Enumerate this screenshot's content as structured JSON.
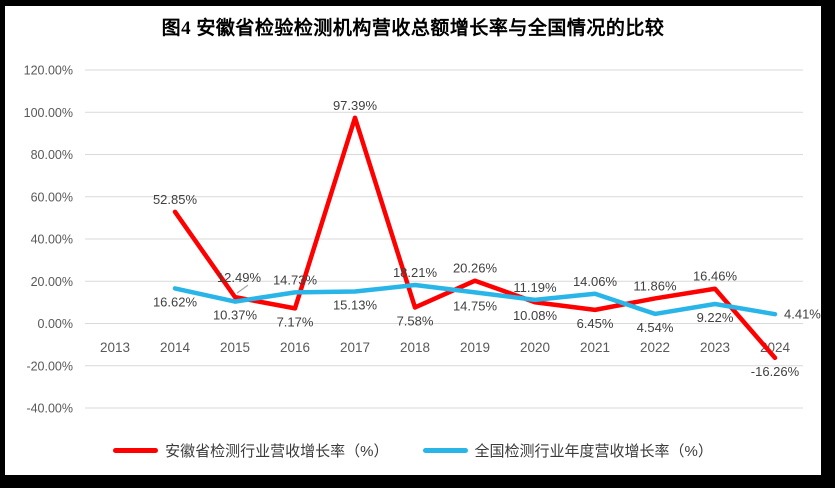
{
  "chart_data": {
    "type": "line",
    "title": "图4  安徽省检验检测机构营收总额增长率与全国情况的比较",
    "categories": [
      "2013",
      "2014",
      "2015",
      "2016",
      "2017",
      "2018",
      "2019",
      "2020",
      "2021",
      "2022",
      "2023",
      "2024"
    ],
    "series": [
      {
        "name": "安徽省检测行业营收增长率（%）",
        "color": "#fe0000",
        "values": [
          null,
          52.85,
          12.49,
          7.17,
          97.39,
          7.58,
          20.26,
          10.08,
          6.45,
          11.86,
          16.46,
          -16.26
        ],
        "label_positions": [
          null,
          "above",
          "leader",
          "below",
          "above",
          "below",
          "above",
          "below",
          "below",
          "above",
          "above",
          "below"
        ]
      },
      {
        "name": "全国检测行业年度营收增长率（%）",
        "color": "#29b5e8",
        "values": [
          null,
          16.62,
          10.37,
          14.73,
          15.13,
          18.21,
          14.75,
          11.19,
          14.06,
          4.54,
          9.22,
          4.41
        ],
        "label_positions": [
          null,
          "below",
          "below",
          "above",
          "below",
          "above",
          "below",
          "above",
          "above",
          "below",
          "below",
          "right"
        ]
      }
    ],
    "y_ticks": [
      {
        "value": 120,
        "label": "120.00%"
      },
      {
        "value": 100,
        "label": "100.00%"
      },
      {
        "value": 80,
        "label": "80.00%"
      },
      {
        "value": 60,
        "label": "60.00%"
      },
      {
        "value": 40,
        "label": "40.00%"
      },
      {
        "value": 20,
        "label": "20.00%"
      },
      {
        "value": 0,
        "label": "0.00%"
      },
      {
        "value": -20,
        "label": "-20.00%"
      },
      {
        "value": -40,
        "label": "-40.00%"
      }
    ],
    "ylim": [
      -40,
      120
    ],
    "grid": true,
    "legend_position": "bottom",
    "label_format": "0.00%",
    "colors": {
      "gridline": "#d9d9d9",
      "leader_line": "#a6a6a6",
      "axis_text": "#595959",
      "data_label_text": "#404040",
      "background": "#ffffff",
      "frame": "#000000"
    }
  }
}
